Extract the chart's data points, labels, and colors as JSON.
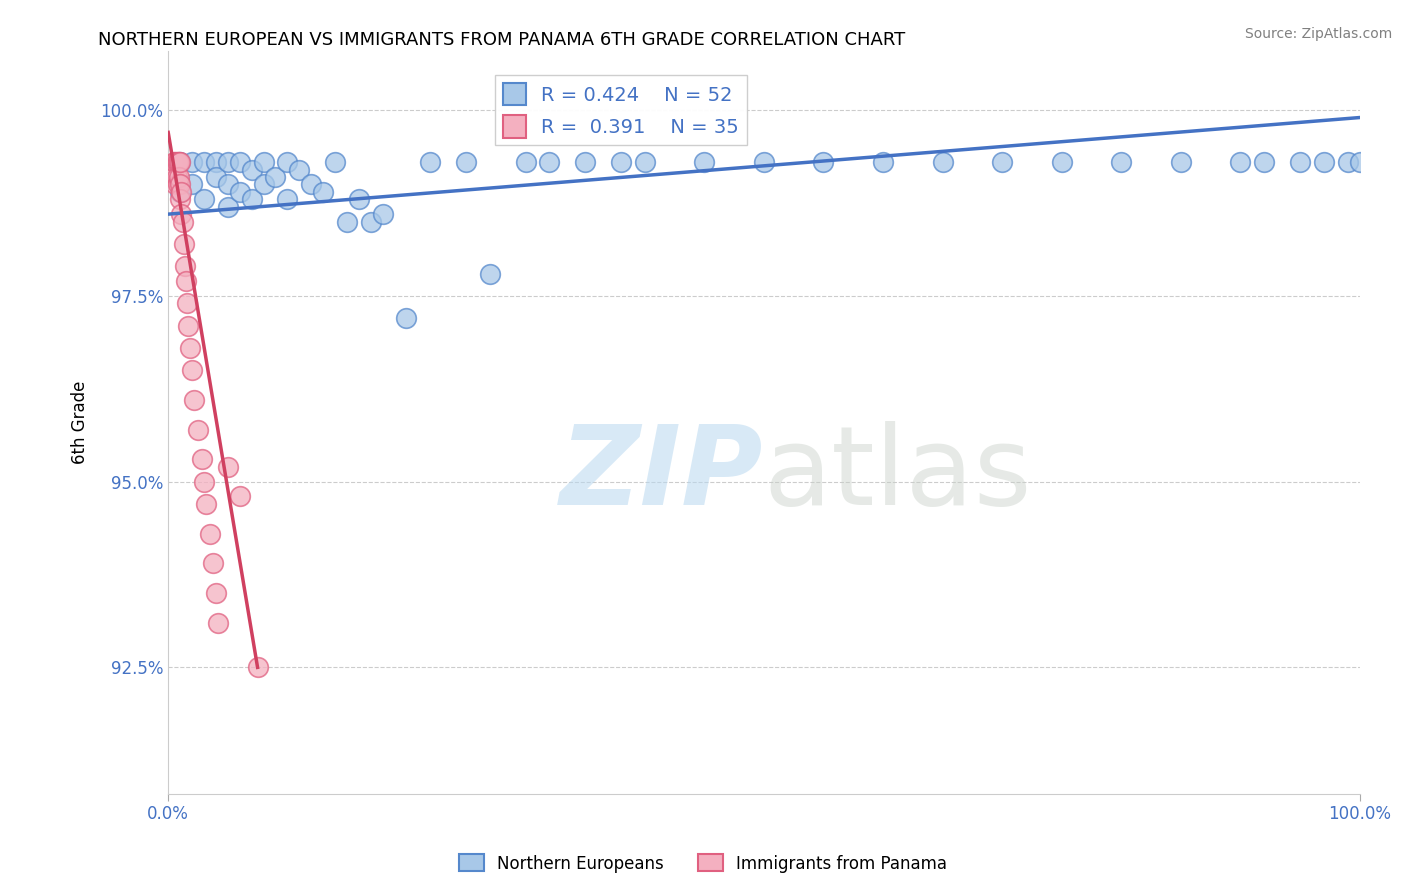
{
  "title": "NORTHERN EUROPEAN VS IMMIGRANTS FROM PANAMA 6TH GRADE CORRELATION CHART",
  "source_text": "Source: ZipAtlas.com",
  "ylabel": "6th Grade",
  "xlim": [
    0.0,
    1.0
  ],
  "ylim": [
    0.908,
    1.008
  ],
  "yticks": [
    0.925,
    0.95,
    0.975,
    1.0
  ],
  "ytick_labels": [
    "92.5%",
    "95.0%",
    "97.5%",
    "100.0%"
  ],
  "xticks": [
    0.0,
    1.0
  ],
  "xtick_labels": [
    "0.0%",
    "100.0%"
  ],
  "blue_R": 0.424,
  "blue_N": 52,
  "pink_R": 0.391,
  "pink_N": 35,
  "blue_color": "#a8c8e8",
  "pink_color": "#f4b0c0",
  "blue_edge_color": "#5588cc",
  "pink_edge_color": "#e06080",
  "blue_line_color": "#4472c4",
  "pink_line_color": "#d04060",
  "legend_label_blue": "Northern Europeans",
  "legend_label_pink": "Immigrants from Panama",
  "blue_scatter_x": [
    0.01,
    0.01,
    0.02,
    0.02,
    0.03,
    0.03,
    0.04,
    0.04,
    0.05,
    0.05,
    0.05,
    0.06,
    0.06,
    0.07,
    0.07,
    0.08,
    0.08,
    0.09,
    0.1,
    0.1,
    0.11,
    0.12,
    0.13,
    0.14,
    0.15,
    0.16,
    0.17,
    0.18,
    0.2,
    0.22,
    0.25,
    0.27,
    0.3,
    0.32,
    0.35,
    0.38,
    0.4,
    0.45,
    0.5,
    0.55,
    0.6,
    0.65,
    0.7,
    0.75,
    0.8,
    0.85,
    0.9,
    0.92,
    0.95,
    0.97,
    0.99,
    1.0
  ],
  "blue_scatter_y": [
    0.993,
    0.989,
    0.993,
    0.99,
    0.993,
    0.988,
    0.993,
    0.991,
    0.993,
    0.99,
    0.987,
    0.993,
    0.989,
    0.992,
    0.988,
    0.993,
    0.99,
    0.991,
    0.993,
    0.988,
    0.992,
    0.99,
    0.989,
    0.993,
    0.985,
    0.988,
    0.985,
    0.986,
    0.972,
    0.993,
    0.993,
    0.978,
    0.993,
    0.993,
    0.993,
    0.993,
    0.993,
    0.993,
    0.993,
    0.993,
    0.993,
    0.993,
    0.993,
    0.993,
    0.993,
    0.993,
    0.993,
    0.993,
    0.993,
    0.993,
    0.993,
    0.993
  ],
  "pink_scatter_x": [
    0.005,
    0.005,
    0.006,
    0.006,
    0.007,
    0.007,
    0.008,
    0.008,
    0.009,
    0.009,
    0.01,
    0.01,
    0.01,
    0.011,
    0.011,
    0.012,
    0.013,
    0.014,
    0.015,
    0.016,
    0.017,
    0.018,
    0.02,
    0.022,
    0.025,
    0.028,
    0.03,
    0.032,
    0.035,
    0.038,
    0.04,
    0.042,
    0.05,
    0.06,
    0.075
  ],
  "pink_scatter_y": [
    0.993,
    0.991,
    0.993,
    0.99,
    0.993,
    0.991,
    0.993,
    0.99,
    0.993,
    0.991,
    0.993,
    0.99,
    0.988,
    0.989,
    0.986,
    0.985,
    0.982,
    0.979,
    0.977,
    0.974,
    0.971,
    0.968,
    0.965,
    0.961,
    0.957,
    0.953,
    0.95,
    0.947,
    0.943,
    0.939,
    0.935,
    0.931,
    0.952,
    0.948,
    0.925
  ],
  "blue_trendline_x": [
    0.0,
    1.0
  ],
  "blue_trendline_y": [
    0.986,
    0.999
  ],
  "pink_trendline_x": [
    0.0,
    0.075
  ],
  "pink_trendline_y": [
    0.997,
    0.925
  ]
}
